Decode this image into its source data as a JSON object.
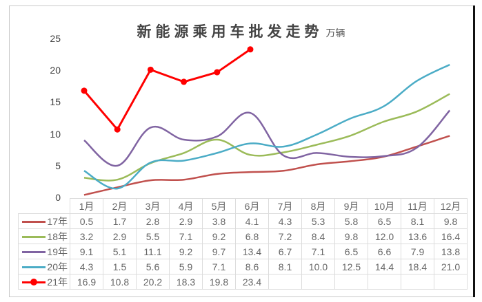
{
  "title": "新能源乘用车批发走势",
  "unit": "万辆",
  "y_ticks": [
    "25",
    "20",
    "15",
    "10",
    "5",
    "0"
  ],
  "months": [
    "1月",
    "2月",
    "3月",
    "4月",
    "5月",
    "6月",
    "7月",
    "8月",
    "9月",
    "10月",
    "11月",
    "12月"
  ],
  "series": [
    {
      "name": "17年",
      "color": "#c0504d",
      "values": [
        "0.5",
        "1.7",
        "2.8",
        "2.9",
        "3.8",
        "4.1",
        "4.3",
        "5.3",
        "5.8",
        "6.5",
        "8.1",
        "9.8"
      ]
    },
    {
      "name": "18年",
      "color": "#9bbb59",
      "values": [
        "3.2",
        "2.9",
        "5.5",
        "7.1",
        "9.2",
        "6.8",
        "7.2",
        "8.4",
        "9.8",
        "12.0",
        "13.6",
        "16.4"
      ]
    },
    {
      "name": "19年",
      "color": "#8064a2",
      "values": [
        "9.1",
        "5.1",
        "11.1",
        "9.2",
        "9.7",
        "13.4",
        "6.7",
        "7.1",
        "6.5",
        "6.6",
        "7.9",
        "13.8"
      ]
    },
    {
      "name": "20年",
      "color": "#4bacc6",
      "values": [
        "4.3",
        "1.5",
        "5.6",
        "5.9",
        "7.1",
        "8.6",
        "8.1",
        "10.0",
        "12.5",
        "14.4",
        "18.4",
        "21.0"
      ]
    },
    {
      "name": "21年",
      "color": "#ff0000",
      "values": [
        "16.9",
        "10.8",
        "20.2",
        "18.3",
        "19.8",
        "23.4",
        "",
        "",
        "",
        "",
        "",
        ""
      ]
    }
  ],
  "chart_data": {
    "type": "line",
    "title": "新能源乘用车批发走势",
    "subtitle": "万辆",
    "xlabel": "",
    "ylabel": "万辆",
    "ylim": [
      0,
      25
    ],
    "yticks": [
      0,
      5,
      10,
      15,
      20,
      25
    ],
    "grid": false,
    "legend_position": "data-table-left",
    "categories": [
      "1月",
      "2月",
      "3月",
      "4月",
      "5月",
      "6月",
      "7月",
      "8月",
      "9月",
      "10月",
      "11月",
      "12月"
    ],
    "series": [
      {
        "name": "17年",
        "color": "#c0504d",
        "smooth": true,
        "markers": false,
        "values": [
          0.5,
          1.7,
          2.8,
          2.9,
          3.8,
          4.1,
          4.3,
          5.3,
          5.8,
          6.5,
          8.1,
          9.8
        ]
      },
      {
        "name": "18年",
        "color": "#9bbb59",
        "smooth": true,
        "markers": false,
        "values": [
          3.2,
          2.9,
          5.5,
          7.1,
          9.2,
          6.8,
          7.2,
          8.4,
          9.8,
          12.0,
          13.6,
          16.4
        ]
      },
      {
        "name": "19年",
        "color": "#8064a2",
        "smooth": true,
        "markers": false,
        "values": [
          9.1,
          5.1,
          11.1,
          9.2,
          9.7,
          13.4,
          6.7,
          7.1,
          6.5,
          6.6,
          7.9,
          13.8
        ]
      },
      {
        "name": "20年",
        "color": "#4bacc6",
        "smooth": true,
        "markers": false,
        "values": [
          4.3,
          1.5,
          5.6,
          5.9,
          7.1,
          8.6,
          8.1,
          10.0,
          12.5,
          14.4,
          18.4,
          21.0
        ]
      },
      {
        "name": "21年",
        "color": "#ff0000",
        "smooth": false,
        "markers": true,
        "values": [
          16.9,
          10.8,
          20.2,
          18.3,
          19.8,
          23.4,
          null,
          null,
          null,
          null,
          null,
          null
        ]
      }
    ]
  }
}
